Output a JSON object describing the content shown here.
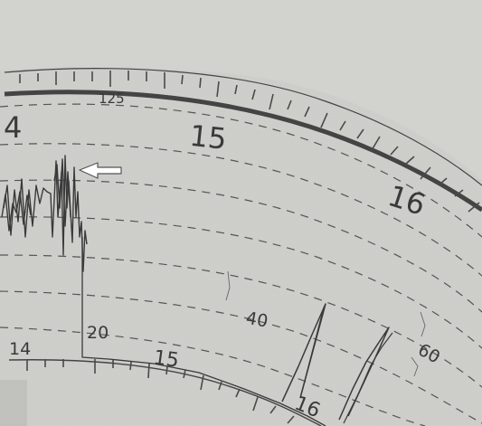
{
  "image": {
    "subject": "tachograph-chart-disc",
    "colors": {
      "paper": "#c9c9c7",
      "paper_light": "#d3d3d0",
      "ink": "#444444",
      "ink_dark": "#333333",
      "arrow_fill": "#ffffff",
      "arrow_stroke": "#555555"
    },
    "labels": {
      "speed_125": "125",
      "hour_14_top": "4",
      "hour_15": "15",
      "hour_16": "16",
      "distance_40": "40",
      "distance_60": "60",
      "distance_20": "20",
      "inner_14": "14",
      "inner_15": "15",
      "inner_16": "16"
    }
  }
}
